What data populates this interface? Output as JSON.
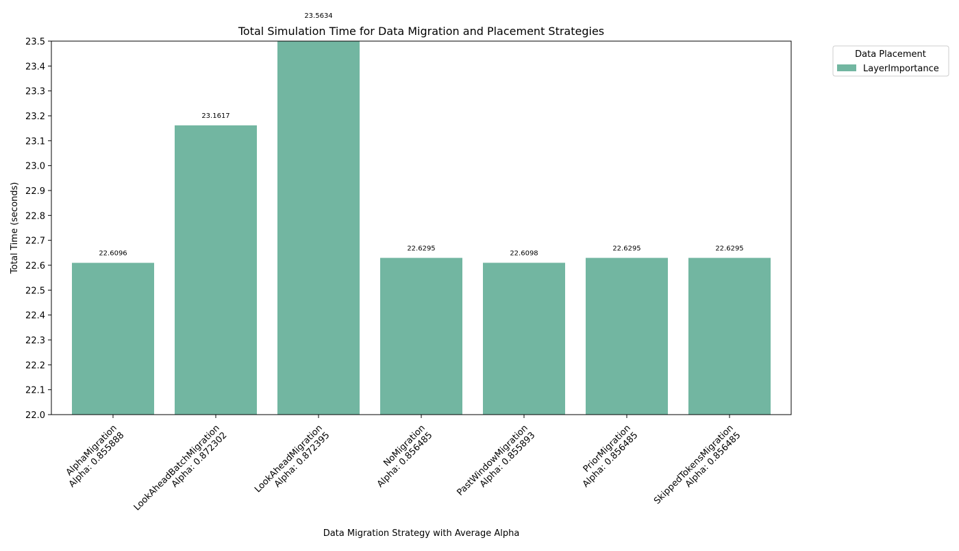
{
  "chart_data": {
    "type": "bar",
    "title": "Total Simulation Time for Data Migration and Placement Strategies",
    "xlabel": "Data Migration Strategy with Average Alpha",
    "ylabel": "Total Time (seconds)",
    "ylim": [
      22.0,
      23.5
    ],
    "yticks": [
      "22.0",
      "22.1",
      "22.2",
      "22.3",
      "22.4",
      "22.5",
      "22.6",
      "22.7",
      "22.8",
      "22.9",
      "23.0",
      "23.1",
      "23.2",
      "23.3",
      "23.4",
      "23.5"
    ],
    "grid": false,
    "categories": [
      {
        "name": "AlphaMigration",
        "alpha": "Alpha: 0.855888"
      },
      {
        "name": "LookAheadBatchMigration",
        "alpha": "Alpha: 0.872302"
      },
      {
        "name": "LookAheadMigration",
        "alpha": "Alpha: 0.872395"
      },
      {
        "name": "NoMigration",
        "alpha": "Alpha: 0.856485"
      },
      {
        "name": "PastWindowMigration",
        "alpha": "Alpha: 0.855893"
      },
      {
        "name": "PriorMigration",
        "alpha": "Alpha: 0.856485"
      },
      {
        "name": "SkippedTokensMigration",
        "alpha": "Alpha: 0.856485"
      }
    ],
    "series": [
      {
        "name": "LayerImportance",
        "color": "#72b6a1",
        "values": [
          22.6096,
          23.1617,
          23.5634,
          22.6295,
          22.6098,
          22.6295,
          22.6295
        ],
        "labels": [
          "22.6096",
          "23.1617",
          "23.5634",
          "22.6295",
          "22.6098",
          "22.6295",
          "22.6295"
        ]
      }
    ],
    "legend": {
      "title": "Data Placement",
      "position": "outside-top-right",
      "entries": [
        "LayerImportance"
      ]
    }
  }
}
